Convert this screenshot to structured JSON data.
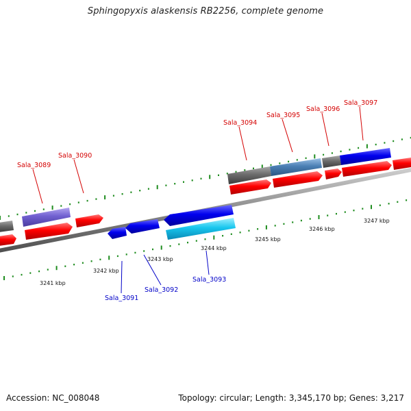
{
  "title": "Sphingopyxis alaskensis RB2256, complete genome",
  "footer": {
    "accession": "Accession: NC_008048",
    "summary": "Topology: circular; Length: 3,345,170 bp; Genes: 3,217"
  },
  "colors": {
    "forward_label": "#d40000",
    "reverse_label": "#0000c8",
    "tick": "#1e8c1e",
    "backbone": "#8c8c8c"
  },
  "scale_labels": [
    "3241 kbp",
    "3242 kbp",
    "3243 kbp",
    "3244 kbp",
    "3245 kbp",
    "3246 kbp",
    "3247 kbp"
  ],
  "forward_gene_labels": [
    "Sala_3089",
    "Sala_3090",
    "Sala_3094",
    "Sala_3095",
    "Sala_3096",
    "Sala_3097"
  ],
  "reverse_gene_labels": [
    "Sala_3091",
    "Sala_3092",
    "Sala_3093"
  ]
}
